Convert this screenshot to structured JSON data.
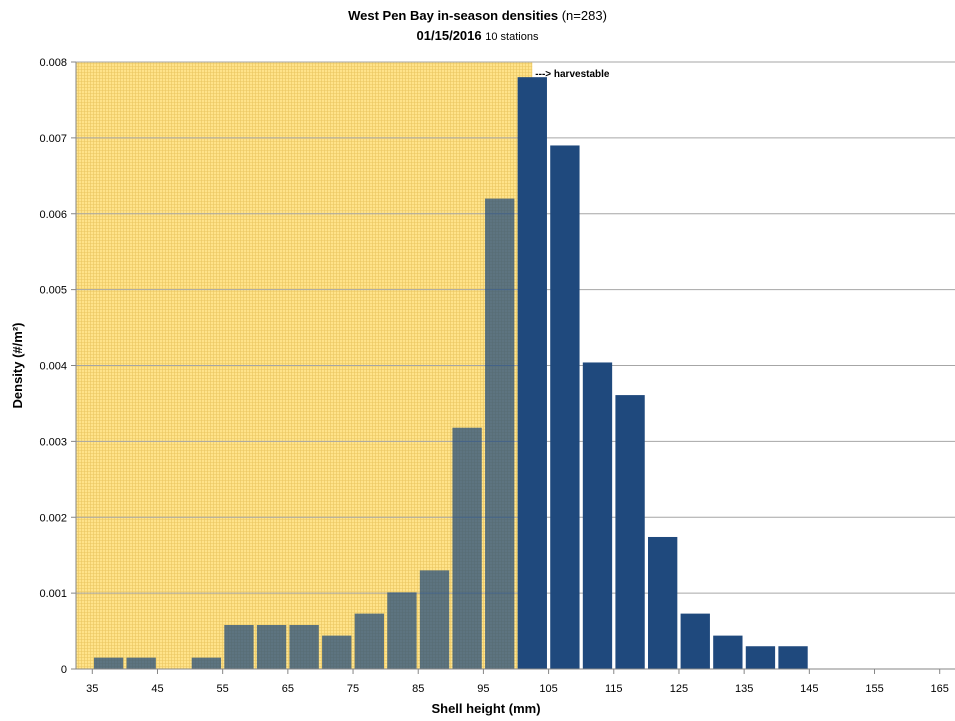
{
  "chart_data": {
    "type": "bar",
    "title": {
      "main_bold": "West Pen Bay  in-season densities",
      "main_paren_open": " (",
      "main_n": "n=283",
      "main_paren_close": ")",
      "date": "01/15/2016",
      "stations": "10 stations"
    },
    "xlabel": "Shell height (mm)",
    "ylabel": "Density (#/m²)",
    "annotation": "---> harvestable",
    "xlim": [
      32.5,
      167.5
    ],
    "ylim": [
      0,
      0.008
    ],
    "x_ticks": [
      "35",
      "45",
      "55",
      "65",
      "75",
      "85",
      "95",
      "105",
      "115",
      "125",
      "135",
      "145",
      "155",
      "165"
    ],
    "y_ticks": [
      "0",
      "0.001",
      "0.002",
      "0.003",
      "0.004",
      "0.005",
      "0.006",
      "0.007",
      "0.008"
    ],
    "x_tick_values": [
      35,
      45,
      55,
      65,
      75,
      85,
      95,
      105,
      115,
      125,
      135,
      145,
      155,
      165
    ],
    "y_tick_values": [
      0,
      0.001,
      0.002,
      0.003,
      0.004,
      0.005,
      0.006,
      0.007,
      0.008
    ],
    "shaded_region": {
      "x_start": 32.5,
      "x_end": 102.5,
      "color": "#FFE38A"
    },
    "harvestable_threshold": 102.5,
    "colors": {
      "bar": "#1F497D",
      "shade": "#FFE38A",
      "grid": "#A6A6A6"
    },
    "grid": true,
    "legend": "none",
    "x": [
      37.5,
      42.5,
      47.5,
      52.5,
      57.5,
      62.5,
      67.5,
      72.5,
      77.5,
      82.5,
      87.5,
      92.5,
      97.5,
      102.5,
      107.5,
      112.5,
      117.5,
      122.5,
      127.5,
      132.5,
      137.5,
      142.5,
      147.5,
      152.5,
      157.5,
      162.5
    ],
    "values": [
      0.00015,
      0.00015,
      0,
      0.00015,
      0.00058,
      0.00058,
      0.00058,
      0.00044,
      0.00073,
      0.00101,
      0.0013,
      0.00318,
      0.0062,
      0.0078,
      0.0069,
      0.00404,
      0.00361,
      0.00174,
      0.00073,
      0.00044,
      0.0003,
      0.0003,
      0,
      0,
      0,
      0
    ]
  }
}
